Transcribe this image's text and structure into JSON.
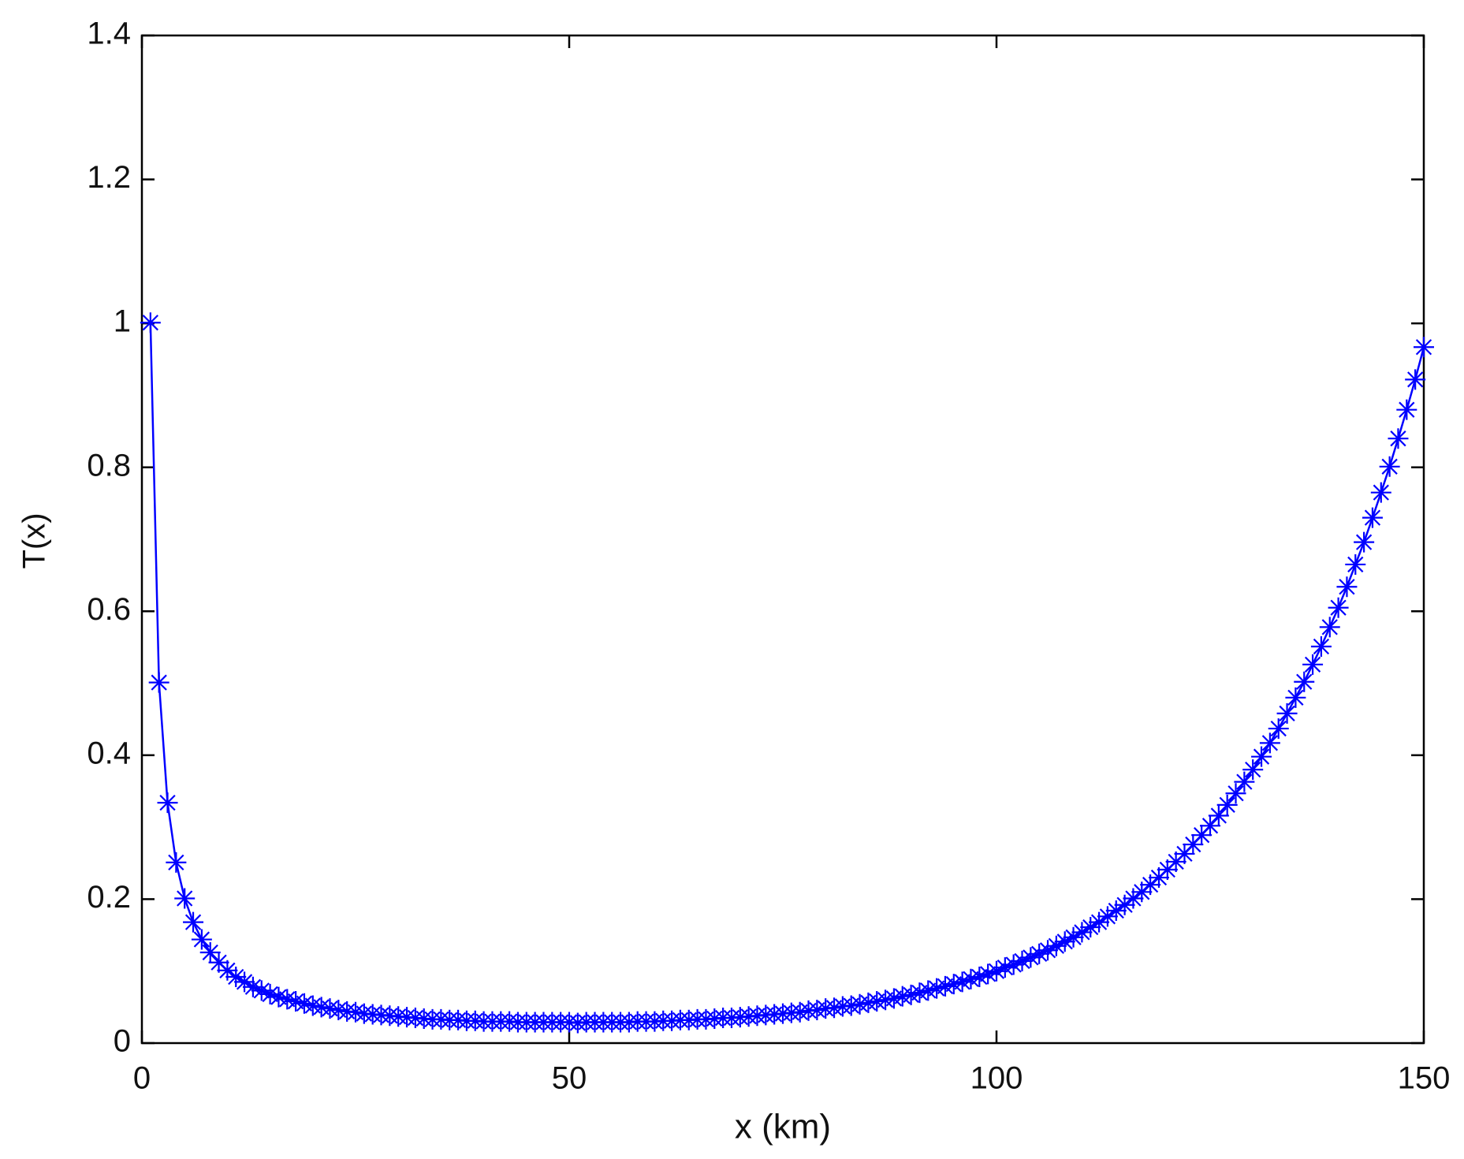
{
  "chart_data": {
    "type": "line",
    "xlabel": "x (km)",
    "ylabel": "T(x)",
    "color": "#0000ff",
    "xlim": [
      0,
      150
    ],
    "xticks": [
      0,
      50,
      100,
      150
    ],
    "ylim": [
      0,
      1.4
    ],
    "yticks": [
      0,
      0.2,
      0.4,
      0.6,
      0.8,
      1,
      1.2,
      1.4
    ],
    "grid": false,
    "x": [
      1,
      2,
      3,
      4,
      5,
      6,
      7,
      8,
      9,
      10,
      11,
      12,
      13,
      14,
      15,
      16,
      17,
      18,
      19,
      20,
      21,
      22,
      23,
      24,
      25,
      26,
      27,
      28,
      29,
      30,
      31,
      32,
      33,
      34,
      35,
      36,
      37,
      38,
      39,
      40,
      41,
      42,
      43,
      44,
      45,
      46,
      47,
      48,
      49,
      50,
      51,
      52,
      53,
      54,
      55,
      56,
      57,
      58,
      59,
      60,
      61,
      62,
      63,
      64,
      65,
      66,
      67,
      68,
      69,
      70,
      71,
      72,
      73,
      74,
      75,
      76,
      77,
      78,
      79,
      80,
      81,
      82,
      83,
      84,
      85,
      86,
      87,
      88,
      89,
      90,
      91,
      92,
      93,
      94,
      95,
      96,
      97,
      98,
      99,
      100,
      101,
      102,
      103,
      104,
      105,
      106,
      107,
      108,
      109,
      110,
      111,
      112,
      113,
      114,
      115,
      116,
      117,
      118,
      119,
      120,
      121,
      122,
      123,
      124,
      125,
      126,
      127,
      128,
      129,
      130,
      131,
      132,
      133,
      134,
      135,
      136,
      137,
      138,
      139,
      140,
      141,
      142,
      143,
      144,
      145,
      146,
      147,
      148,
      149,
      150
    ],
    "values": [
      1.001,
      0.501,
      0.334,
      0.251,
      0.201,
      0.168,
      0.144,
      0.126,
      0.112,
      0.101,
      0.092,
      0.085,
      0.078,
      0.073,
      0.068,
      0.064,
      0.061,
      0.058,
      0.055,
      0.052,
      0.05,
      0.048,
      0.046,
      0.044,
      0.043,
      0.041,
      0.04,
      0.039,
      0.038,
      0.037,
      0.036,
      0.035,
      0.034,
      0.033,
      0.033,
      0.032,
      0.032,
      0.031,
      0.031,
      0.03,
      0.03,
      0.03,
      0.03,
      0.029,
      0.029,
      0.029,
      0.029,
      0.029,
      0.029,
      0.029,
      0.028,
      0.029,
      0.029,
      0.029,
      0.029,
      0.029,
      0.029,
      0.03,
      0.03,
      0.03,
      0.031,
      0.031,
      0.032,
      0.032,
      0.033,
      0.033,
      0.034,
      0.035,
      0.035,
      0.036,
      0.037,
      0.038,
      0.039,
      0.04,
      0.041,
      0.042,
      0.043,
      0.045,
      0.046,
      0.048,
      0.049,
      0.051,
      0.052,
      0.054,
      0.056,
      0.058,
      0.06,
      0.062,
      0.065,
      0.067,
      0.07,
      0.073,
      0.076,
      0.079,
      0.082,
      0.085,
      0.089,
      0.092,
      0.096,
      0.1,
      0.105,
      0.109,
      0.114,
      0.119,
      0.124,
      0.129,
      0.135,
      0.141,
      0.147,
      0.154,
      0.161,
      0.168,
      0.176,
      0.184,
      0.192,
      0.201,
      0.21,
      0.22,
      0.23,
      0.241,
      0.252,
      0.263,
      0.276,
      0.289,
      0.302,
      0.316,
      0.331,
      0.347,
      0.363,
      0.38,
      0.398,
      0.417,
      0.437,
      0.458,
      0.48,
      0.502,
      0.526,
      0.551,
      0.578,
      0.605,
      0.634,
      0.665,
      0.696,
      0.73,
      0.765,
      0.801,
      0.84,
      0.88,
      0.922,
      0.967
    ]
  }
}
